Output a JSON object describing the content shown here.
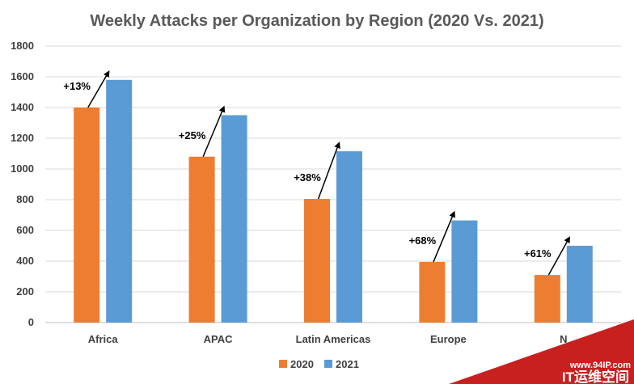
{
  "chart_data": {
    "type": "bar",
    "title": "Weekly Attacks per Organization by Region (2020 Vs. 2021)",
    "xlabel": "",
    "ylabel": "",
    "categories": [
      "Africa",
      "APAC",
      "Latin Americas",
      "Europe",
      "N"
    ],
    "series": [
      {
        "name": "2020",
        "color": "#ED7D31",
        "values": [
          1400,
          1080,
          805,
          395,
          310
        ]
      },
      {
        "name": "2021",
        "color": "#5B9BD5",
        "values": [
          1580,
          1350,
          1115,
          665,
          500
        ]
      }
    ],
    "annotations": [
      "+13%",
      "+25%",
      "+38%",
      "+68%",
      "+61%"
    ],
    "ylim": [
      0,
      1800
    ],
    "yticks": [
      0,
      200,
      400,
      600,
      800,
      1000,
      1200,
      1400,
      1600,
      1800
    ],
    "grid": true,
    "legend": "bottom-center"
  },
  "watermark": {
    "url": "www.94IP.com",
    "brand": "IT运维空间"
  }
}
